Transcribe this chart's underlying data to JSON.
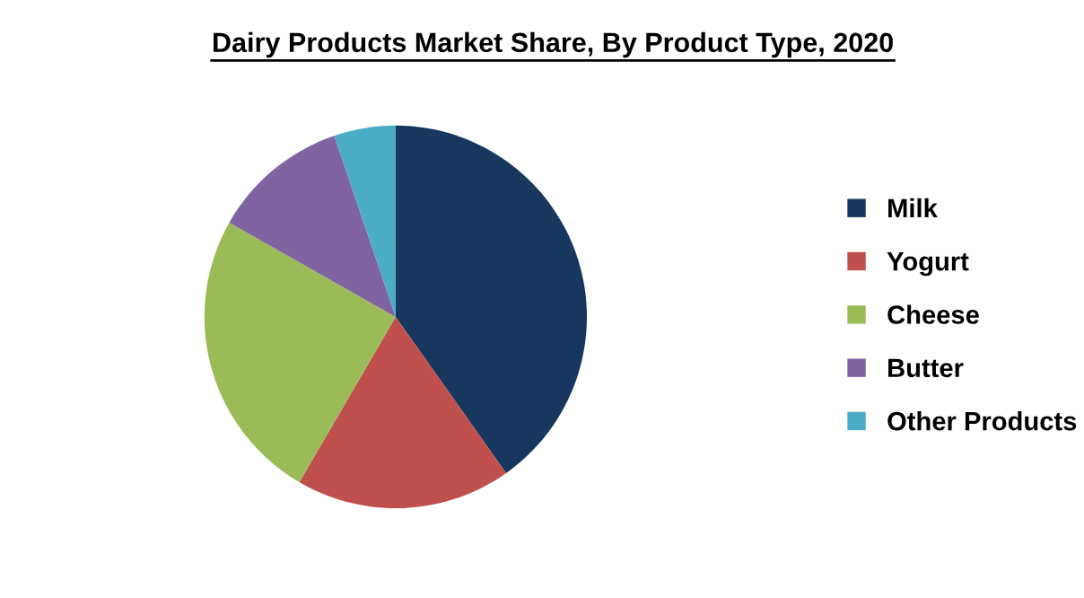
{
  "chart_data": {
    "type": "pie",
    "title": "Dairy Products Market Share, By Product Type, 2020",
    "categories": [
      "Milk",
      "Yogurt",
      "Cheese",
      "Butter",
      "Other Products"
    ],
    "values": [
      40.2,
      18.2,
      24.8,
      11.6,
      5.2
    ],
    "colors": [
      "#17375e",
      "#c0504d",
      "#9bbb59",
      "#8064a2",
      "#4bacc6"
    ],
    "legend": "right"
  }
}
